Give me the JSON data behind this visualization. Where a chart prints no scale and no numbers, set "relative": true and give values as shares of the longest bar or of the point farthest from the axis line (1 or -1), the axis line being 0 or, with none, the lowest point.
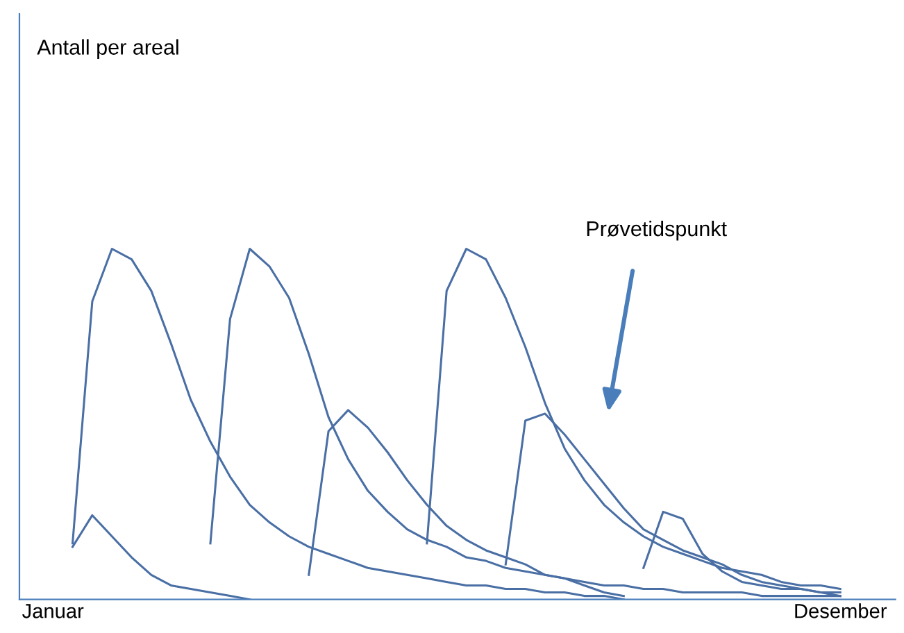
{
  "chart_data": {
    "type": "line",
    "relative": true,
    "marker": "none",
    "line_style": "solid",
    "categories": [
      "Januar",
      null,
      null,
      null,
      null,
      null,
      null,
      null,
      null,
      null,
      null,
      null,
      null,
      null,
      null,
      null,
      null,
      null,
      null,
      null,
      null,
      null,
      null,
      null,
      null,
      null,
      null,
      null,
      null,
      null,
      null,
      null,
      null,
      null,
      null,
      null,
      null,
      null,
      null,
      null,
      "Desember"
    ],
    "annotations": [
      "Prøvetidspunkt",
      "Antall per areal"
    ],
    "series": [
      {
        "color": "#4a6fa5",
        "values": [
          null,
          0.15,
          0.24,
          0.18,
          0.12,
          0.07,
          0.04,
          0.03,
          0.02,
          0.01,
          0.0,
          null,
          null,
          null,
          null,
          null,
          null,
          null,
          null,
          null,
          null,
          null,
          null,
          null,
          null,
          null,
          null,
          null,
          null,
          null,
          null,
          null,
          null,
          null,
          null,
          null,
          null,
          null,
          null,
          null,
          null
        ]
      },
      {
        "color": "#4a6fa5",
        "values": [
          null,
          0.16,
          0.85,
          1.0,
          0.97,
          0.88,
          0.73,
          0.57,
          0.45,
          0.35,
          0.27,
          0.22,
          0.18,
          0.15,
          0.13,
          0.11,
          0.09,
          0.08,
          0.07,
          0.06,
          0.05,
          0.04,
          0.04,
          0.03,
          0.03,
          0.02,
          0.02,
          0.01,
          0.01,
          0.0,
          null,
          null,
          null,
          null,
          null,
          null,
          null,
          null,
          null,
          null,
          null
        ]
      },
      {
        "color": "#4a6fa5",
        "values": [
          null,
          null,
          null,
          null,
          null,
          null,
          null,
          null,
          0.16,
          0.8,
          1.0,
          0.95,
          0.86,
          0.7,
          0.52,
          0.4,
          0.31,
          0.25,
          0.2,
          0.17,
          0.15,
          0.12,
          0.11,
          0.09,
          0.08,
          0.07,
          0.06,
          0.05,
          0.04,
          0.04,
          0.03,
          0.03,
          0.02,
          0.02,
          0.02,
          0.02,
          0.01,
          0.01,
          0.01,
          0.01,
          0.01
        ]
      },
      {
        "color": "#4a6fa5",
        "values": [
          null,
          null,
          null,
          null,
          null,
          null,
          null,
          null,
          null,
          null,
          null,
          null,
          null,
          0.07,
          0.48,
          0.54,
          0.49,
          0.42,
          0.34,
          0.27,
          0.21,
          0.17,
          0.14,
          0.12,
          0.1,
          0.07,
          0.06,
          0.04,
          0.02,
          0.01,
          null,
          null,
          null,
          null,
          null,
          null,
          null,
          null,
          null,
          null,
          null
        ]
      },
      {
        "color": "#4a6fa5",
        "values": [
          null,
          null,
          null,
          null,
          null,
          null,
          null,
          null,
          null,
          null,
          null,
          null,
          null,
          null,
          null,
          null,
          null,
          null,
          null,
          0.16,
          0.88,
          1.0,
          0.97,
          0.86,
          0.72,
          0.56,
          0.43,
          0.34,
          0.27,
          0.22,
          0.18,
          0.15,
          0.13,
          0.11,
          0.09,
          0.08,
          0.07,
          0.05,
          0.04,
          0.04,
          0.03
        ]
      },
      {
        "color": "#4a6fa5",
        "values": [
          null,
          null,
          null,
          null,
          null,
          null,
          null,
          null,
          null,
          null,
          null,
          null,
          null,
          null,
          null,
          null,
          null,
          null,
          null,
          null,
          null,
          null,
          null,
          0.1,
          0.51,
          0.53,
          0.47,
          0.4,
          0.33,
          0.26,
          0.2,
          0.17,
          0.14,
          0.12,
          0.1,
          0.07,
          0.05,
          0.04,
          0.03,
          0.02,
          0.01
        ]
      },
      {
        "color": "#4a6fa5",
        "values": [
          null,
          null,
          null,
          null,
          null,
          null,
          null,
          null,
          null,
          null,
          null,
          null,
          null,
          null,
          null,
          null,
          null,
          null,
          null,
          null,
          null,
          null,
          null,
          null,
          null,
          null,
          null,
          null,
          null,
          null,
          0.09,
          0.25,
          0.23,
          0.13,
          0.08,
          0.05,
          0.04,
          0.03,
          0.03,
          0.02,
          0.02
        ]
      }
    ]
  }
}
